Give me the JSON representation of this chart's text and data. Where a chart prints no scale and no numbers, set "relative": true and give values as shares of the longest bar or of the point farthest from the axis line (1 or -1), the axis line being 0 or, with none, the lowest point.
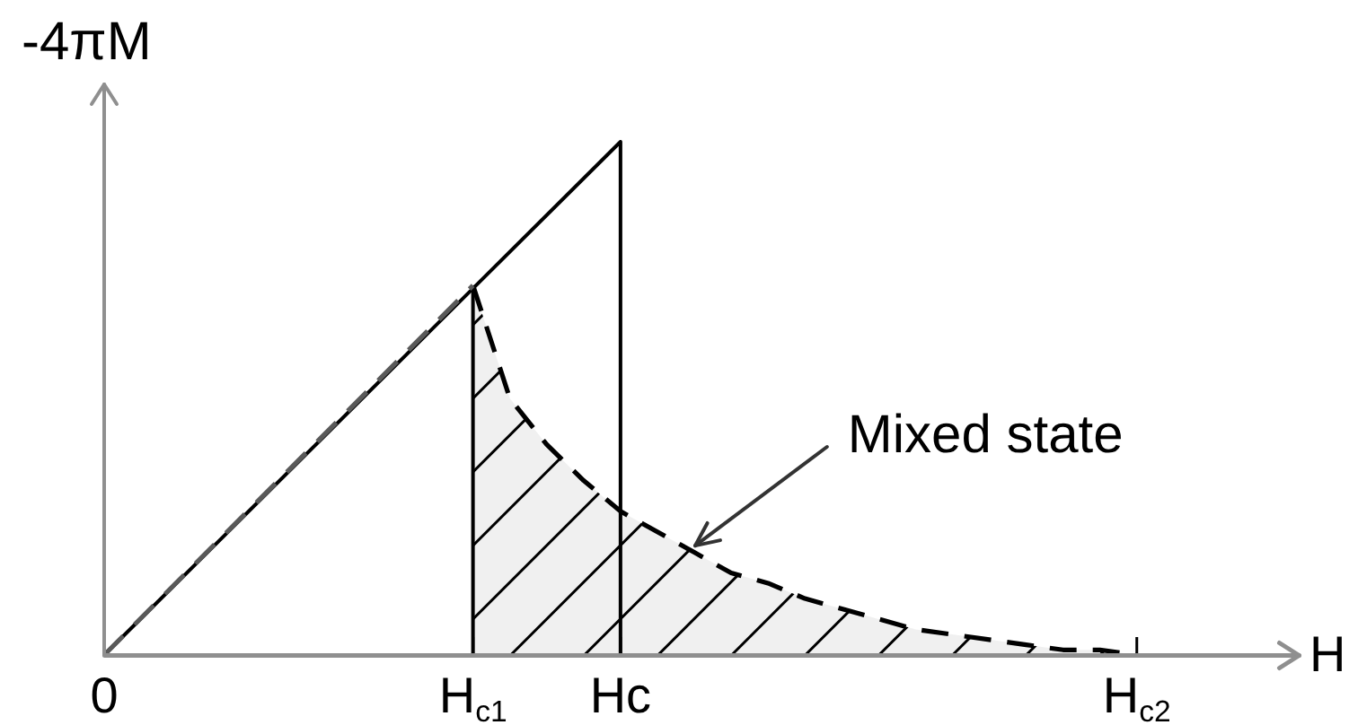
{
  "chart_data": {
    "type": "line",
    "xlabel": "H",
    "ylabel": "-4πM",
    "relative": true,
    "marker": "none",
    "annotations": [
      "Mixed state"
    ],
    "categories": [
      "0",
      null,
      null,
      null,
      null,
      null,
      null,
      null,
      null,
      null,
      "H$_{c1}$",
      null,
      null,
      null,
      "Hc",
      null,
      null,
      null,
      null,
      null,
      null,
      null,
      null,
      null,
      null,
      null,
      null,
      null,
      "H$_{c2}$",
      null,
      null,
      null,
      null
    ],
    "series": [
      {
        "x": [
          "0",
          "H$_{c1}$"
        ],
        "values": [
          0,
          0.72
        ],
        "color": "#595959",
        "line_style": "dashed"
      },
      {
        "x": [
          "0",
          "Hc",
          "Hc"
        ],
        "values": [
          0,
          1,
          0
        ],
        "color": "#000000",
        "line_style": "solid"
      },
      {
        "type": "area",
        "values": [
          null,
          null,
          null,
          null,
          null,
          null,
          null,
          null,
          null,
          null,
          0.72,
          0.5,
          0.41,
          0.34,
          0.28,
          0.24,
          0.2,
          0.16,
          0.14,
          0.11,
          0.09,
          0.07,
          0.05,
          0.04,
          0.03,
          0.02,
          0.01,
          0.01,
          0,
          null,
          null,
          null,
          null
        ],
        "color": "#000000",
        "line_style": "dashed"
      }
    ]
  }
}
